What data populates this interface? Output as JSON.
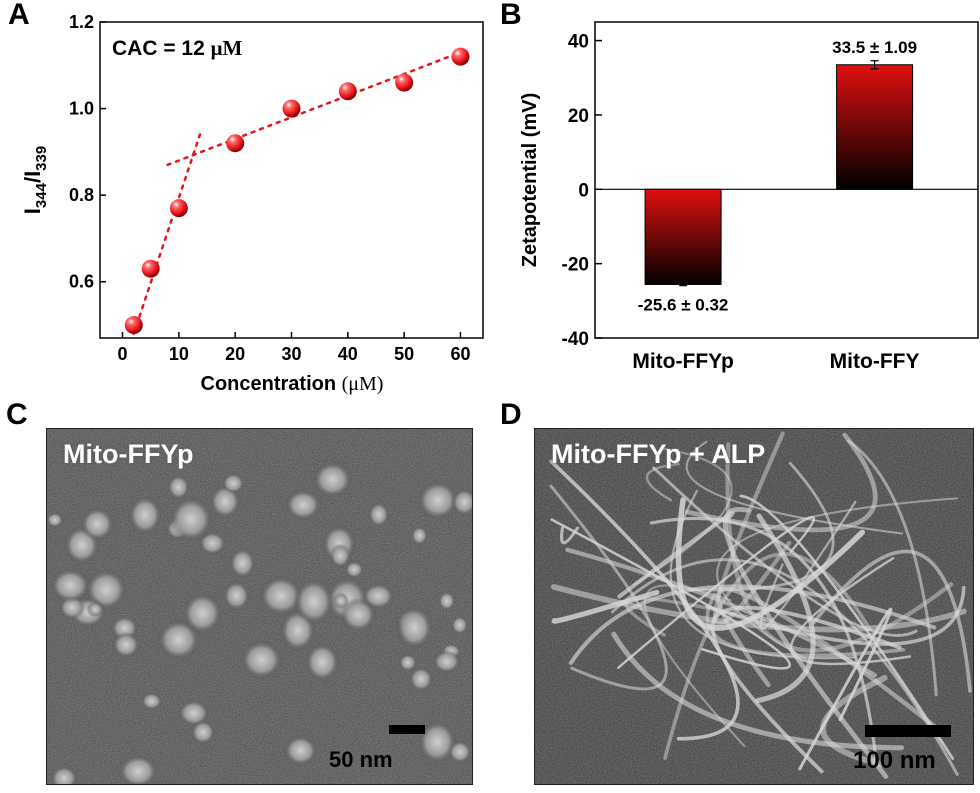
{
  "panels": {
    "a": "A",
    "b": "B",
    "c": "C",
    "d": "D"
  },
  "chart_data": [
    {
      "type": "scatter",
      "panel": "A",
      "annotation_prefix": "CAC = 12 ",
      "annotation_unit": "μM",
      "ylabel_main": "I",
      "ylabel_sub1": "344",
      "ylabel_mid": "/I",
      "ylabel_sub2": "339",
      "xlabel_main": "Concentration ",
      "xlabel_unit": "(μM)",
      "x": [
        2,
        5,
        10,
        20,
        30,
        40,
        50,
        60
      ],
      "y": [
        0.5,
        0.63,
        0.77,
        0.92,
        1.0,
        1.04,
        1.06,
        1.12
      ],
      "xlim": [
        -4,
        64
      ],
      "ylim": [
        0.47,
        1.2
      ],
      "xticks": [
        0,
        10,
        20,
        30,
        40,
        50,
        60
      ],
      "xtick_labels": [
        "0",
        "10",
        "20",
        "30",
        "40",
        "50",
        "60"
      ],
      "yticks": [
        0.6,
        0.8,
        1.0,
        1.2
      ],
      "ytick_labels": [
        "0.6",
        "0.8",
        "1.0",
        "1.2"
      ],
      "fit_lines": [
        {
          "x1": 2,
          "y1": 0.48,
          "x2": 14,
          "y2": 0.95
        },
        {
          "x1": 8,
          "y1": 0.87,
          "x2": 60,
          "y2": 1.13
        }
      ],
      "marker_color": "#e8141b"
    },
    {
      "type": "bar",
      "panel": "B",
      "categories": [
        "Mito-FFYp",
        "Mito-FFY"
      ],
      "values": [
        -25.6,
        33.5
      ],
      "errors": [
        0.32,
        1.09
      ],
      "value_labels": [
        "-25.6 ± 0.32",
        "33.5 ± 1.09"
      ],
      "ylabel": "Zetapotential (mV)",
      "ylim": [
        -40,
        45
      ],
      "yticks": [
        -40,
        -20,
        0,
        20,
        40
      ],
      "ytick_labels": [
        "-40",
        "-20",
        "0",
        "20",
        "40"
      ],
      "bar_color_top": "#e01010",
      "bar_color_bottom": "#000000"
    }
  ],
  "tem_c": {
    "label": "Mito-FFYp",
    "scale": "50 nm"
  },
  "tem_d": {
    "label": "Mito-FFYp + ALP",
    "scale": "100 nm"
  }
}
